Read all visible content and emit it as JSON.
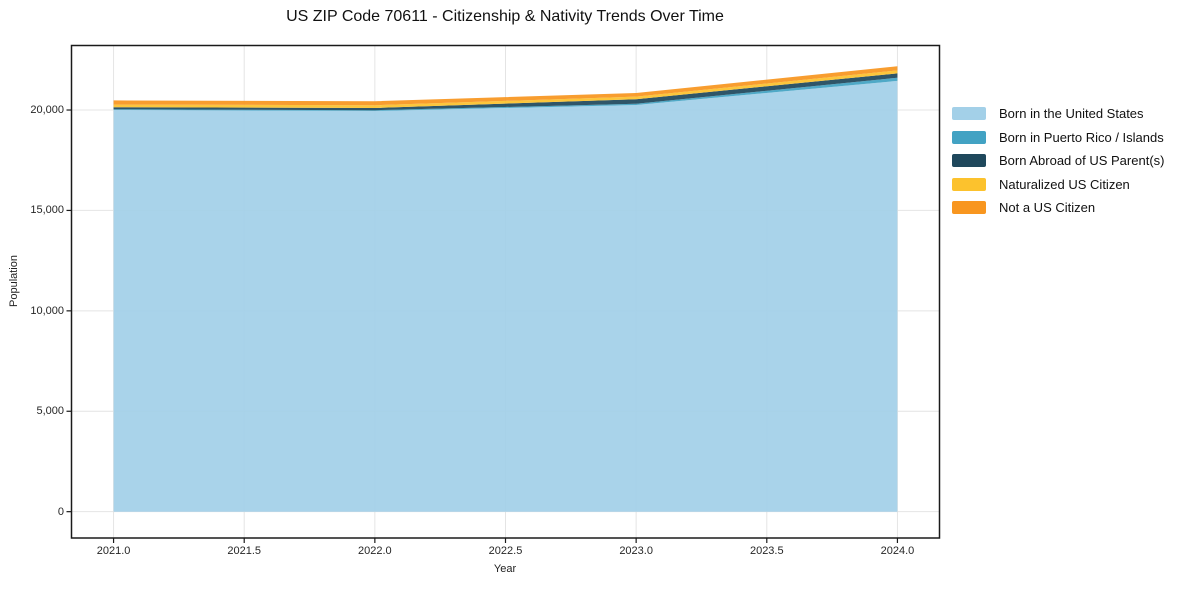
{
  "chart_data": {
    "type": "area",
    "stacked": true,
    "title": "US ZIP Code 70611 - Citizenship & Nativity Trends Over Time",
    "xlabel": "Year",
    "ylabel": "Population",
    "x": [
      2021,
      2022,
      2023,
      2024
    ],
    "series": [
      {
        "name": "Born in the United States",
        "color": "#a3d0e8",
        "values": [
          20000,
          19950,
          20250,
          21450
        ]
      },
      {
        "name": "Born in Puerto Rico / Islands",
        "color": "#42a2c3",
        "values": [
          40,
          40,
          60,
          160
        ]
      },
      {
        "name": "Born Abroad of US Parent(s)",
        "color": "#1f485c",
        "values": [
          100,
          110,
          230,
          215
        ]
      },
      {
        "name": "Naturalized US Citizen",
        "color": "#fcc22d",
        "values": [
          130,
          140,
          130,
          150
        ]
      },
      {
        "name": "Not a US Citizen",
        "color": "#f8961f",
        "values": [
          210,
          200,
          180,
          200
        ]
      }
    ],
    "x_ticks": [
      "2021.0",
      "2021.5",
      "2022.0",
      "2022.5",
      "2023.0",
      "2023.5",
      "2024.0"
    ],
    "x_tick_values": [
      2021,
      2021.5,
      2022,
      2022.5,
      2023,
      2023.5,
      2024
    ],
    "y_ticks": [
      "0",
      "5,000",
      "10,000",
      "15,000",
      "20,000"
    ],
    "y_tick_values": [
      0,
      5000,
      10000,
      15000,
      20000
    ],
    "xlim": [
      2020.839,
      2024.161
    ],
    "ylim": [
      -1311,
      23213
    ],
    "grid": true,
    "legend_position": "right"
  },
  "colors": {
    "grid": "#e4e4e4",
    "spine": "#1a1a1a",
    "tick": "#1a1a1a",
    "background": "#ffffff"
  }
}
